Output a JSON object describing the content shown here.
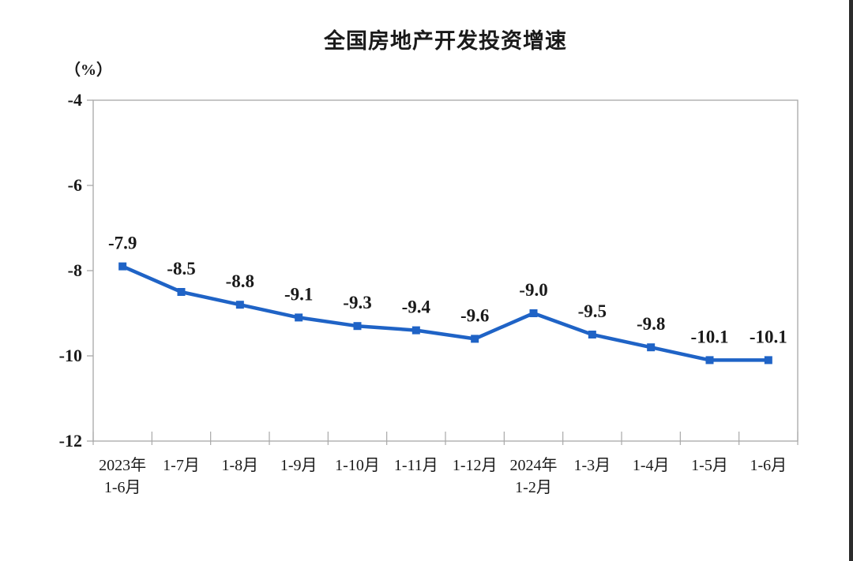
{
  "page": {
    "title": "全国房地产开发投资增速",
    "unit_label": "（%）"
  },
  "chart_data": {
    "type": "line",
    "title": "全国房地产开发投资增速",
    "unit": "（%）",
    "xlabel": "",
    "ylabel": "(%)",
    "categories": [
      "2023年\n1-6月",
      "1-7月",
      "1-8月",
      "1-9月",
      "1-10月",
      "1-11月",
      "1-12月",
      "2024年\n1-2月",
      "1-3月",
      "1-4月",
      "1-5月",
      "1-6月"
    ],
    "values": [
      -7.9,
      -8.5,
      -8.8,
      -9.1,
      -9.3,
      -9.4,
      -9.6,
      -9.0,
      -9.5,
      -9.8,
      -10.1,
      -10.1
    ],
    "data_labels": [
      "-7.9",
      "-8.5",
      "-8.8",
      "-9.1",
      "-9.3",
      "-9.4",
      "-9.6",
      "-9.0",
      "-9.5",
      "-9.8",
      "-10.1",
      "-10.1"
    ],
    "y_ticks": [
      "-4",
      "-6",
      "-8",
      "-10",
      "-12"
    ],
    "y_tick_values": [
      -4,
      -6,
      -8,
      -10,
      -12
    ],
    "ylim": [
      -12,
      -4
    ],
    "grid": false,
    "legend_position": "none",
    "marker": "square",
    "colors": {
      "line": "#1f63c6",
      "marker": "#1f63c6",
      "axis": "#a8a8a8",
      "text": "#1a1a1a",
      "background": "#ffffff"
    }
  }
}
